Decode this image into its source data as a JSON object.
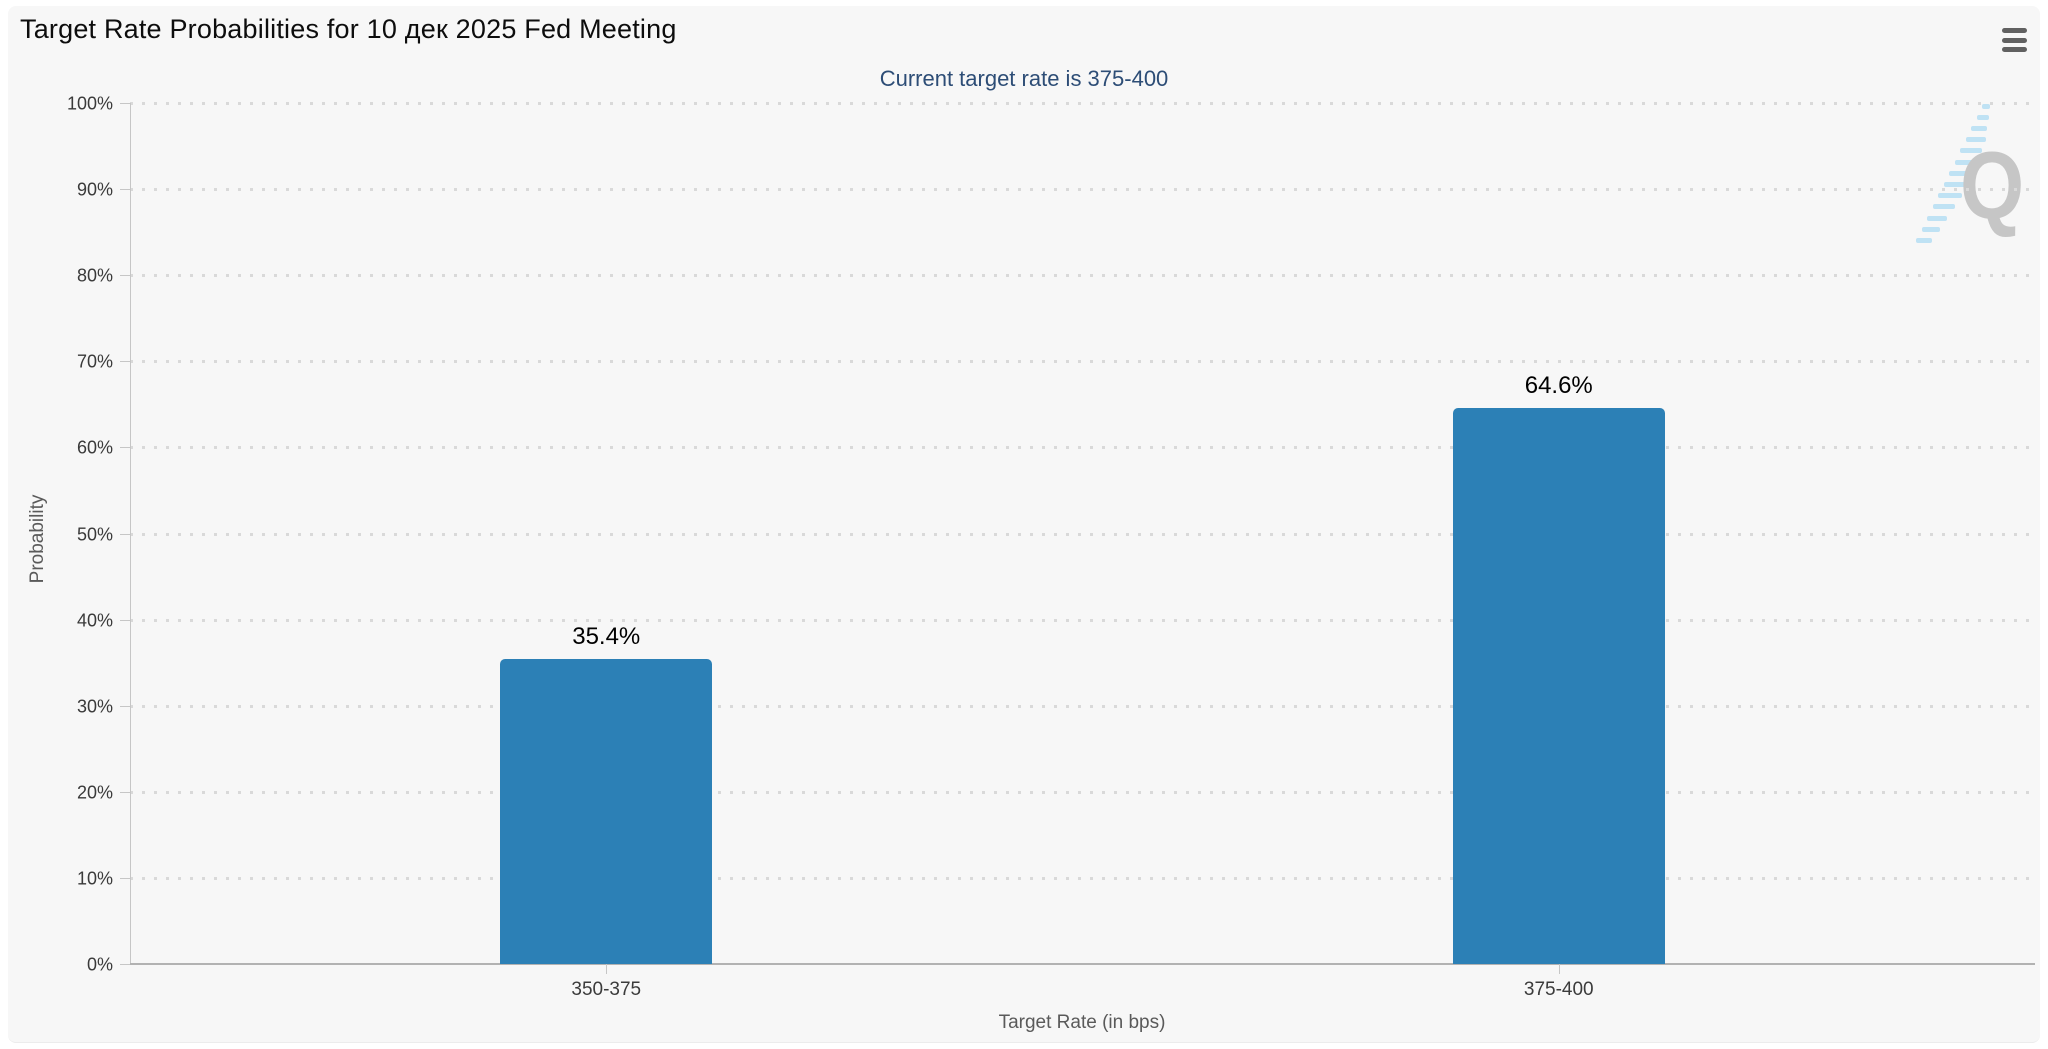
{
  "chart_data": {
    "type": "bar",
    "title": "Target Rate Probabilities for 10 дек 2025 Fed Meeting",
    "subtitle": "Current target rate is 375-400",
    "categories": [
      "350-375",
      "375-400"
    ],
    "values": [
      35.4,
      64.6
    ],
    "value_labels": [
      "35.4%",
      "64.6%"
    ],
    "xlabel": "Target Rate (in bps)",
    "ylabel": "Probability",
    "ylim": [
      0,
      100
    ],
    "ytick_step": 10,
    "ytick_suffix": "%",
    "grid": "dotted-horizontal",
    "legend": "none",
    "bar_color": "#2c80b6"
  },
  "toolbar": {
    "menu_icon": "hamburger-export-menu"
  },
  "watermark": {
    "letter": "Q"
  },
  "colors": {
    "panel_background": "#f7f7f7",
    "bar": "#2c80b6",
    "subtitle_text": "#2d4d76",
    "axis_line": "#c6c6c6",
    "x_axis_line": "#b2b2b2",
    "gridline_dots": "#d9d9d9",
    "watermark_gray": "#c6c6c6",
    "watermark_blue": "#bfe2f4"
  }
}
